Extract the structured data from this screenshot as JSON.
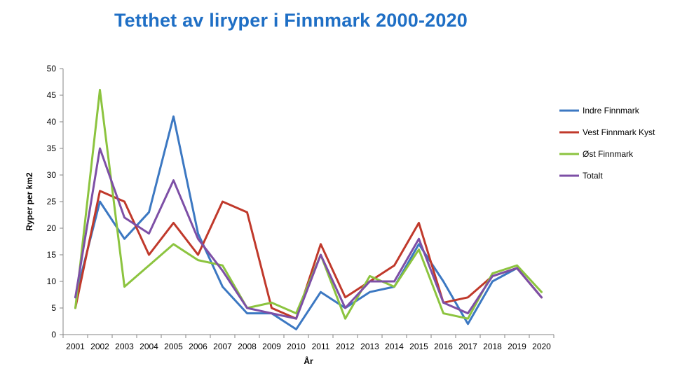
{
  "chart_data": {
    "type": "line",
    "title": "Tetthet av liryper i Finnmark 2000-2020",
    "xlabel": "År",
    "ylabel": "Ryper per km2",
    "ylim": [
      0,
      50
    ],
    "yticks": [
      0,
      5,
      10,
      15,
      20,
      25,
      30,
      35,
      40,
      45,
      50
    ],
    "grid": false,
    "legend_position": "right",
    "categories": [
      "2001",
      "2002",
      "2003",
      "2004",
      "2005",
      "2006",
      "2007",
      "2008",
      "2009",
      "2010",
      "2011",
      "2012",
      "2013",
      "2014",
      "2015",
      "2016",
      "2017",
      "2018",
      "2019",
      "2020"
    ],
    "series": [
      {
        "name": "Indre Finnmark",
        "color": "#3c78c2",
        "values": [
          7,
          25,
          18,
          23,
          41,
          19,
          9,
          4,
          4,
          1,
          8,
          5,
          8,
          9,
          17,
          10,
          2,
          10,
          12.5,
          7
        ]
      },
      {
        "name": "Vest Finnmark Kyst",
        "color": "#c0392b",
        "values": [
          5,
          27,
          25,
          15,
          21,
          15,
          25,
          23,
          5,
          3,
          17,
          7,
          10,
          13,
          21,
          6,
          7,
          11,
          12.5,
          7
        ]
      },
      {
        "name": "Øst Finnmark",
        "color": "#8cc43f",
        "values": [
          5,
          46,
          9,
          13,
          17,
          14,
          13,
          5,
          6,
          4,
          15,
          3,
          11,
          9,
          16,
          4,
          3,
          11.5,
          13,
          8
        ]
      },
      {
        "name": "Totalt",
        "color": "#7d4fa6",
        "values": [
          7,
          35,
          22,
          19,
          29,
          18,
          12,
          5,
          4,
          3,
          15,
          5,
          10,
          10,
          18,
          6,
          4,
          11,
          12.5,
          7
        ]
      }
    ]
  }
}
